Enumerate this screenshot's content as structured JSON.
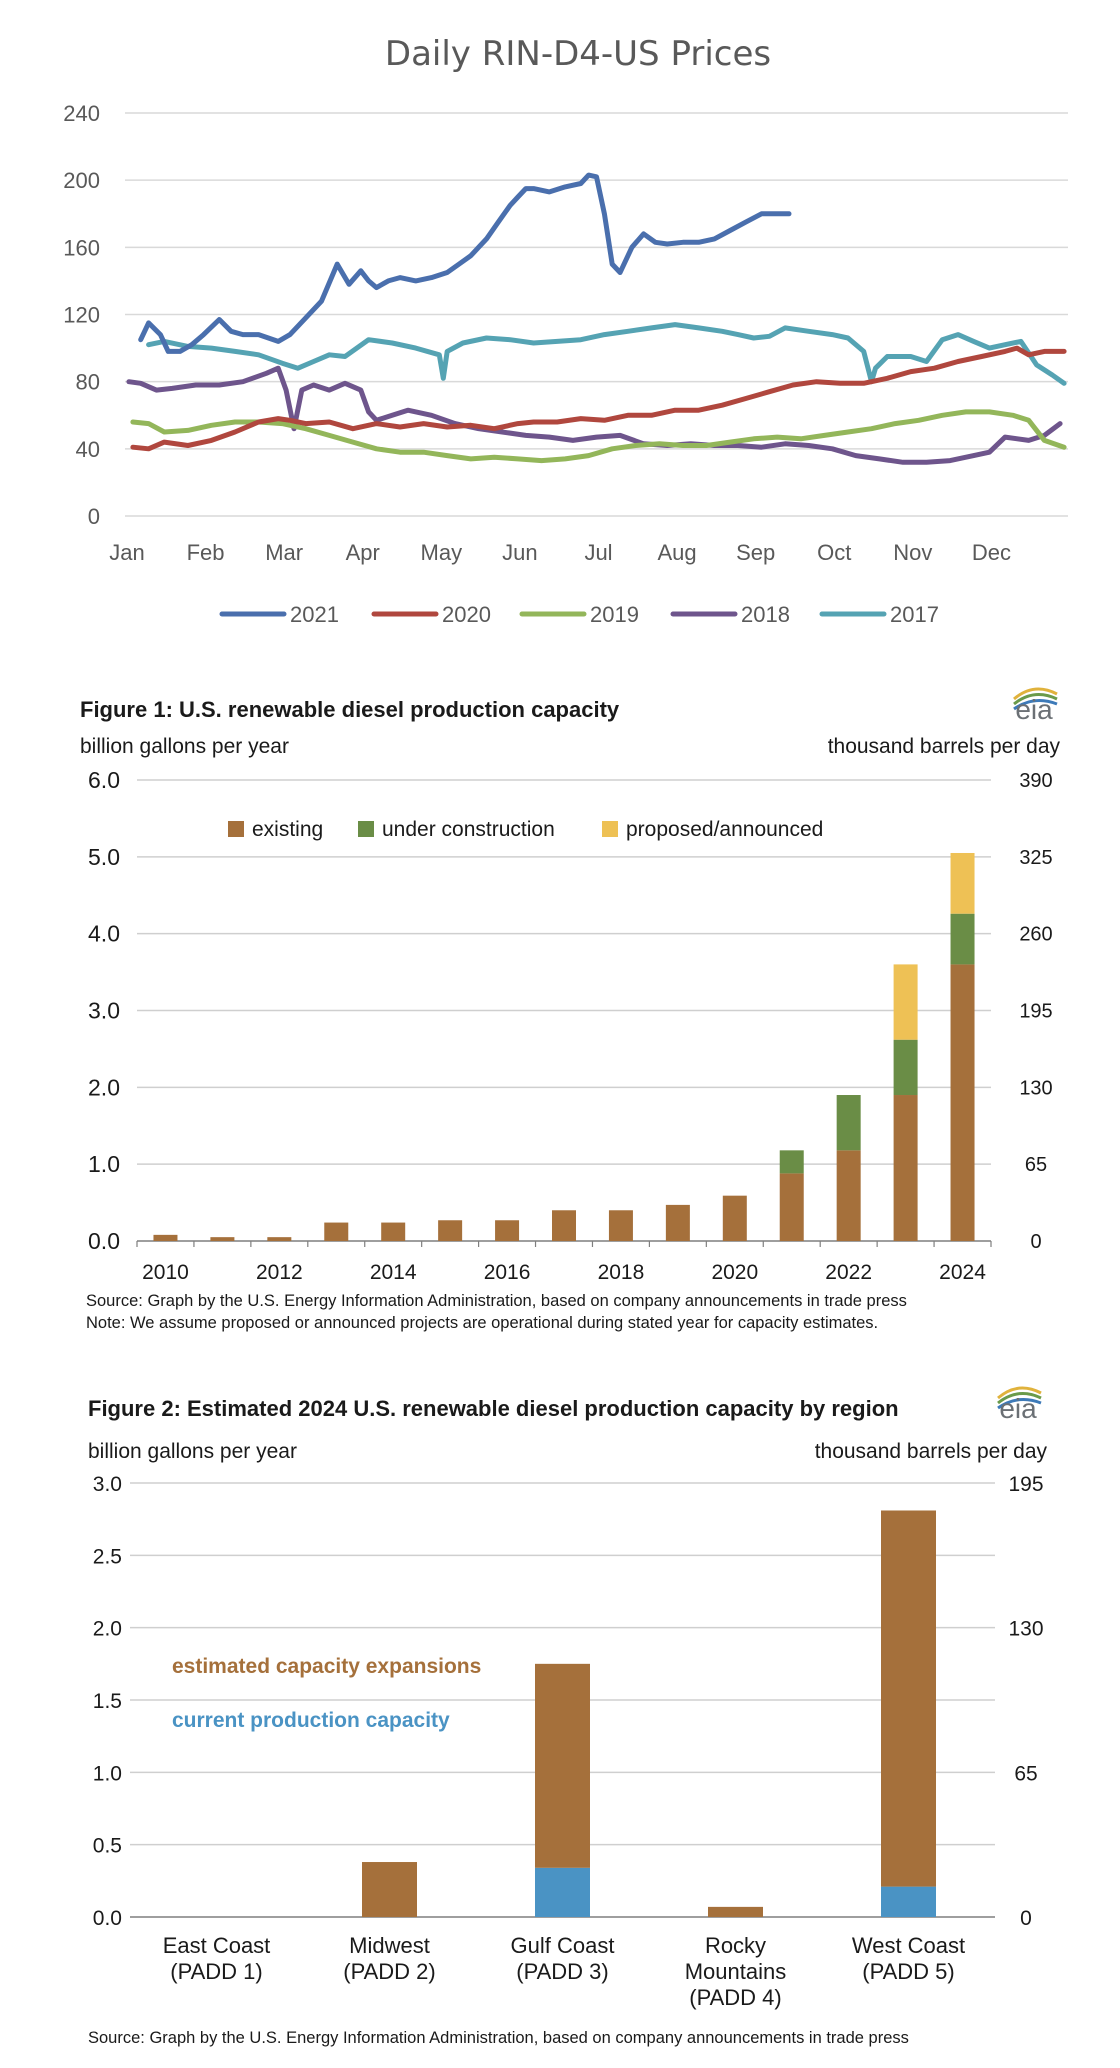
{
  "chart_data": [
    {
      "type": "line",
      "title": "Daily RIN-D4-US Prices",
      "xlabel": "",
      "ylabel": "",
      "x_ticks": [
        "Jan",
        "Feb",
        "Mar",
        "Apr",
        "May",
        "Jun",
        "Jul",
        "Aug",
        "Sep",
        "Oct",
        "Nov",
        "Dec"
      ],
      "y_ticks": [
        "0",
        "40",
        "80",
        "120",
        "160",
        "200",
        "240"
      ],
      "ylim": [
        0,
        240
      ],
      "xlim": [
        0,
        12
      ],
      "grid": true,
      "legend": "bottom",
      "series": [
        {
          "name": "2021",
          "color": "#4a6fad",
          "x": [
            0.2,
            0.3,
            0.45,
            0.55,
            0.7,
            0.85,
            1.0,
            1.2,
            1.35,
            1.5,
            1.7,
            1.95,
            2.1,
            2.3,
            2.5,
            2.7,
            2.85,
            3.0,
            3.1,
            3.2,
            3.35,
            3.5,
            3.7,
            3.9,
            4.1,
            4.25,
            4.4,
            4.5,
            4.6,
            4.75,
            4.9,
            5.0,
            5.1,
            5.2,
            5.4,
            5.6,
            5.8,
            5.9,
            6.0,
            6.1,
            6.15,
            6.2,
            6.3,
            6.45,
            6.6,
            6.75,
            6.9,
            7.1,
            7.3,
            7.5,
            7.7,
            7.9,
            8.1,
            8.3,
            8.45
          ],
          "values": [
            105,
            115,
            108,
            98,
            98,
            102,
            108,
            117,
            110,
            108,
            108,
            104,
            108,
            118,
            128,
            150,
            138,
            146,
            140,
            136,
            140,
            142,
            140,
            142,
            145,
            150,
            155,
            160,
            165,
            175,
            185,
            190,
            195,
            195,
            193,
            196,
            198,
            203,
            202,
            180,
            165,
            150,
            145,
            160,
            168,
            163,
            162,
            163,
            163,
            165,
            170,
            175,
            180,
            180,
            180
          ]
        },
        {
          "name": "2020",
          "color": "#b0473e",
          "x": [
            0.1,
            0.3,
            0.5,
            0.8,
            1.1,
            1.4,
            1.7,
            1.95,
            2.1,
            2.3,
            2.6,
            2.9,
            3.2,
            3.5,
            3.8,
            4.1,
            4.4,
            4.7,
            5.0,
            5.2,
            5.5,
            5.8,
            6.1,
            6.4,
            6.7,
            7.0,
            7.3,
            7.6,
            7.9,
            8.2,
            8.5,
            8.8,
            9.1,
            9.4,
            9.7,
            10.0,
            10.3,
            10.6,
            10.9,
            11.2,
            11.35,
            11.5,
            11.7,
            11.95
          ],
          "values": [
            41,
            40,
            44,
            42,
            45,
            50,
            56,
            58,
            57,
            55,
            56,
            52,
            55,
            53,
            55,
            53,
            54,
            52,
            55,
            56,
            56,
            58,
            57,
            60,
            60,
            63,
            63,
            66,
            70,
            74,
            78,
            80,
            79,
            79,
            82,
            86,
            88,
            92,
            95,
            98,
            100,
            96,
            98,
            98
          ]
        },
        {
          "name": "2019",
          "color": "#93b65a",
          "x": [
            0.1,
            0.3,
            0.5,
            0.8,
            1.1,
            1.4,
            1.7,
            2.0,
            2.3,
            2.6,
            2.9,
            3.2,
            3.5,
            3.8,
            4.1,
            4.4,
            4.7,
            5.0,
            5.3,
            5.6,
            5.9,
            6.2,
            6.5,
            6.8,
            7.1,
            7.4,
            7.7,
            8.0,
            8.3,
            8.6,
            8.9,
            9.2,
            9.5,
            9.8,
            10.1,
            10.4,
            10.7,
            11.0,
            11.3,
            11.5,
            11.7,
            11.95
          ],
          "values": [
            56,
            55,
            50,
            51,
            54,
            56,
            56,
            55,
            52,
            48,
            44,
            40,
            38,
            38,
            36,
            34,
            35,
            34,
            33,
            34,
            36,
            40,
            42,
            43,
            42,
            42,
            44,
            46,
            47,
            46,
            48,
            50,
            52,
            55,
            57,
            60,
            62,
            62,
            60,
            57,
            45,
            41
          ]
        },
        {
          "name": "2018",
          "color": "#6e558c",
          "x": [
            0.05,
            0.2,
            0.4,
            0.6,
            0.9,
            1.2,
            1.5,
            1.8,
            1.95,
            2.05,
            2.15,
            2.25,
            2.4,
            2.6,
            2.8,
            3.0,
            3.1,
            3.2,
            3.4,
            3.6,
            3.9,
            4.2,
            4.5,
            4.8,
            5.1,
            5.4,
            5.7,
            6.0,
            6.3,
            6.6,
            6.9,
            7.2,
            7.5,
            7.8,
            8.1,
            8.4,
            8.7,
            9.0,
            9.3,
            9.6,
            9.9,
            10.2,
            10.5,
            10.8,
            11.0,
            11.2,
            11.5,
            11.7,
            11.9
          ],
          "values": [
            80,
            79,
            75,
            76,
            78,
            78,
            80,
            85,
            88,
            75,
            52,
            75,
            78,
            75,
            79,
            75,
            62,
            57,
            60,
            63,
            60,
            55,
            52,
            50,
            48,
            47,
            45,
            47,
            48,
            43,
            42,
            43,
            42,
            42,
            41,
            43,
            42,
            40,
            36,
            34,
            32,
            32,
            33,
            36,
            38,
            47,
            45,
            48,
            55
          ]
        },
        {
          "name": "2017",
          "color": "#55a3b3",
          "x": [
            0.3,
            0.5,
            0.8,
            1.1,
            1.4,
            1.7,
            2.0,
            2.2,
            2.4,
            2.6,
            2.8,
            3.1,
            3.4,
            3.7,
            4.0,
            4.05,
            4.1,
            4.3,
            4.6,
            4.9,
            5.2,
            5.5,
            5.8,
            6.1,
            6.4,
            6.7,
            7.0,
            7.3,
            7.6,
            7.8,
            8.0,
            8.2,
            8.4,
            8.7,
            9.0,
            9.2,
            9.4,
            9.5,
            9.55,
            9.7,
            10.0,
            10.2,
            10.4,
            10.6,
            10.8,
            11.0,
            11.2,
            11.4,
            11.6,
            11.8,
            11.95
          ],
          "values": [
            102,
            104,
            101,
            100,
            98,
            96,
            91,
            88,
            92,
            96,
            95,
            105,
            103,
            100,
            96,
            82,
            98,
            103,
            106,
            105,
            103,
            104,
            105,
            108,
            110,
            112,
            114,
            112,
            110,
            108,
            106,
            107,
            112,
            110,
            108,
            106,
            98,
            80,
            88,
            95,
            95,
            92,
            105,
            108,
            104,
            100,
            102,
            104,
            90,
            84,
            79
          ]
        }
      ]
    },
    {
      "type": "bar",
      "stacked": true,
      "title": "Figure 1: U.S. renewable diesel production capacity",
      "ylabel": "billion gallons per year",
      "y2label": "thousand barrels per day",
      "ylim": [
        0,
        6.0
      ],
      "y2lim": [
        0,
        390
      ],
      "y_ticks": [
        "0.0",
        "1.0",
        "2.0",
        "3.0",
        "4.0",
        "5.0",
        "6.0"
      ],
      "y2_ticks": [
        "0",
        "65",
        "130",
        "195",
        "260",
        "325",
        "390"
      ],
      "categories": [
        "2010",
        "2011",
        "2012",
        "2013",
        "2014",
        "2015",
        "2016",
        "2017",
        "2018",
        "2019",
        "2020",
        "2021",
        "2022",
        "2023",
        "2024"
      ],
      "x_tick_labels": [
        "2010",
        "2012",
        "2014",
        "2016",
        "2018",
        "2020",
        "2022",
        "2024"
      ],
      "legend": "top",
      "series": [
        {
          "name": "existing",
          "color": "#a5703b",
          "values": [
            0.08,
            0.05,
            0.05,
            0.24,
            0.24,
            0.27,
            0.27,
            0.4,
            0.4,
            0.47,
            0.59,
            0.88,
            1.18,
            1.9,
            3.6
          ]
        },
        {
          "name": "under construction",
          "color": "#6a8d46",
          "values": [
            0,
            0,
            0,
            0,
            0,
            0,
            0,
            0,
            0,
            0,
            0,
            0.3,
            0.72,
            0.72,
            0.66
          ]
        },
        {
          "name": "proposed/announced",
          "color": "#eec155",
          "values": [
            0,
            0,
            0,
            0,
            0,
            0,
            0,
            0,
            0,
            0,
            0,
            0,
            0,
            0.98,
            0.79
          ]
        }
      ],
      "source": "Source: Graph by the U.S. Energy Information Administration, based on company announcements in trade press",
      "note": "Note: We assume proposed or announced projects are operational during stated year for capacity estimates.",
      "logo": "eia"
    },
    {
      "type": "bar",
      "stacked": true,
      "title": "Figure 2: Estimated 2024 U.S. renewable diesel production capacity by region",
      "ylabel": "billion gallons per year",
      "y2label": "thousand barrels per day",
      "ylim": [
        0,
        3.0
      ],
      "y2lim": [
        0,
        195
      ],
      "y_ticks": [
        "0.0",
        "0.5",
        "1.0",
        "1.5",
        "2.0",
        "2.5",
        "3.0"
      ],
      "y2_ticks": [
        "0",
        "65",
        "130",
        "195"
      ],
      "categories": [
        [
          "East Coast",
          "(PADD 1)"
        ],
        [
          "Midwest",
          "(PADD 2)"
        ],
        [
          "Gulf Coast",
          "(PADD 3)"
        ],
        [
          "Rocky",
          "Mountains",
          "(PADD 4)"
        ],
        [
          "West Coast",
          "(PADD 5)"
        ]
      ],
      "legend": "left",
      "series": [
        {
          "name": "current production capacity",
          "color": "#4a93c4",
          "values": [
            0,
            0,
            0.34,
            0,
            0.21
          ]
        },
        {
          "name": "estimated capacity expansions",
          "color": "#a5703b",
          "values": [
            0,
            0.38,
            1.41,
            0.07,
            2.6
          ]
        }
      ],
      "source": "Source: Graph by the U.S. Energy Information Administration, based on company announcements in trade press",
      "logo": "eia"
    }
  ]
}
